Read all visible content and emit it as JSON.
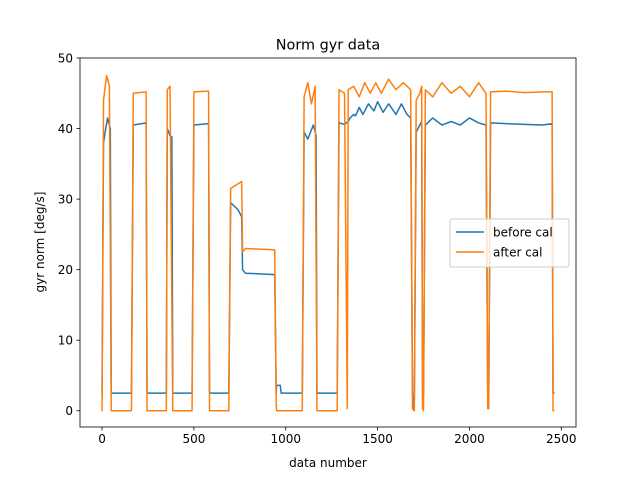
{
  "chart_data": {
    "type": "line",
    "title": "Norm gyr data",
    "xlabel": "data number",
    "ylabel": "gyr norm [deg/s]",
    "xlim": [
      -120,
      2580
    ],
    "ylim": [
      -2.3,
      50
    ],
    "xticks": [
      0,
      500,
      1000,
      1500,
      2000,
      2500
    ],
    "yticks": [
      0,
      10,
      20,
      30,
      40,
      50
    ],
    "grid": false,
    "legend_position": "center-right",
    "series": [
      {
        "name": "before cal",
        "color": "#1f77b4",
        "points": [
          [
            0,
            2.5
          ],
          [
            8,
            38
          ],
          [
            20,
            40
          ],
          [
            30,
            41.5
          ],
          [
            45,
            40
          ],
          [
            50,
            2.5
          ],
          [
            160,
            2.5
          ],
          [
            170,
            40.5
          ],
          [
            240,
            40.8
          ],
          [
            245,
            2.5
          ],
          [
            350,
            2.5
          ],
          [
            355,
            40
          ],
          [
            370,
            39
          ],
          [
            380,
            38.8
          ],
          [
            385,
            2.5
          ],
          [
            490,
            2.5
          ],
          [
            500,
            40.5
          ],
          [
            580,
            40.7
          ],
          [
            585,
            2.5
          ],
          [
            690,
            2.5
          ],
          [
            700,
            29.5
          ],
          [
            740,
            28.5
          ],
          [
            760,
            27.5
          ],
          [
            765,
            20
          ],
          [
            780,
            19.5
          ],
          [
            940,
            19.3
          ],
          [
            948,
            2.5
          ],
          [
            950,
            3.6
          ],
          [
            970,
            3.6
          ],
          [
            975,
            2.5
          ],
          [
            1090,
            2.5
          ],
          [
            1100,
            39.5
          ],
          [
            1120,
            38.5
          ],
          [
            1150,
            40.5
          ],
          [
            1165,
            39
          ],
          [
            1170,
            2.5
          ],
          [
            1280,
            2.5
          ],
          [
            1290,
            40.8
          ],
          [
            1320,
            40.6
          ],
          [
            1340,
            41
          ],
          [
            1350,
            41.5
          ],
          [
            1370,
            42
          ],
          [
            1380,
            41.8
          ],
          [
            1400,
            43
          ],
          [
            1420,
            42
          ],
          [
            1450,
            43.5
          ],
          [
            1480,
            42.5
          ],
          [
            1500,
            43.8
          ],
          [
            1530,
            42.3
          ],
          [
            1560,
            43.5
          ],
          [
            1600,
            42
          ],
          [
            1630,
            43.5
          ],
          [
            1660,
            42
          ],
          [
            1680,
            41.5
          ],
          [
            1690,
            2.5
          ],
          [
            1695,
            0.3
          ],
          [
            1700,
            1.5
          ],
          [
            1710,
            39.5
          ],
          [
            1740,
            41
          ],
          [
            1745,
            0.3
          ],
          [
            1750,
            2.5
          ],
          [
            1760,
            40.5
          ],
          [
            1800,
            41.5
          ],
          [
            1850,
            40.5
          ],
          [
            1900,
            41
          ],
          [
            1950,
            40.5
          ],
          [
            2000,
            41.5
          ],
          [
            2050,
            40.8
          ],
          [
            2090,
            40.5
          ],
          [
            2100,
            0.3
          ],
          [
            2105,
            2.5
          ],
          [
            2115,
            40.8
          ],
          [
            2200,
            40.7
          ],
          [
            2300,
            40.6
          ],
          [
            2400,
            40.5
          ],
          [
            2450,
            40.7
          ],
          [
            2455,
            2.5
          ],
          [
            2460,
            2.5
          ]
        ]
      },
      {
        "name": "after cal",
        "color": "#ff7f0e",
        "points": [
          [
            0,
            0
          ],
          [
            8,
            44
          ],
          [
            15,
            45.5
          ],
          [
            25,
            47.5
          ],
          [
            40,
            46
          ],
          [
            50,
            0
          ],
          [
            160,
            0
          ],
          [
            170,
            45
          ],
          [
            240,
            45.2
          ],
          [
            245,
            0
          ],
          [
            350,
            0
          ],
          [
            355,
            45.5
          ],
          [
            370,
            46
          ],
          [
            385,
            0
          ],
          [
            490,
            0
          ],
          [
            500,
            45.2
          ],
          [
            580,
            45.3
          ],
          [
            585,
            0
          ],
          [
            690,
            0
          ],
          [
            700,
            31.5
          ],
          [
            730,
            32
          ],
          [
            760,
            32.5
          ],
          [
            765,
            22.5
          ],
          [
            780,
            23
          ],
          [
            940,
            22.8
          ],
          [
            948,
            1
          ],
          [
            950,
            0
          ],
          [
            1090,
            0
          ],
          [
            1100,
            44.5
          ],
          [
            1120,
            46.5
          ],
          [
            1140,
            43.5
          ],
          [
            1160,
            46
          ],
          [
            1170,
            0
          ],
          [
            1280,
            0
          ],
          [
            1290,
            45.5
          ],
          [
            1320,
            45
          ],
          [
            1335,
            0.3
          ],
          [
            1340,
            45.5
          ],
          [
            1370,
            46
          ],
          [
            1400,
            44.5
          ],
          [
            1430,
            46.5
          ],
          [
            1460,
            45
          ],
          [
            1490,
            46.5
          ],
          [
            1520,
            45
          ],
          [
            1560,
            47
          ],
          [
            1600,
            45.5
          ],
          [
            1640,
            46.5
          ],
          [
            1680,
            45.5
          ],
          [
            1690,
            0.3
          ],
          [
            1700,
            0
          ],
          [
            1710,
            44
          ],
          [
            1730,
            45
          ],
          [
            1740,
            46
          ],
          [
            1745,
            0.3
          ],
          [
            1750,
            0
          ],
          [
            1760,
            45.5
          ],
          [
            1800,
            44.5
          ],
          [
            1850,
            46.5
          ],
          [
            1900,
            45
          ],
          [
            1950,
            46
          ],
          [
            2000,
            44.5
          ],
          [
            2050,
            46.5
          ],
          [
            2090,
            45
          ],
          [
            2100,
            0.3
          ],
          [
            2105,
            0.3
          ],
          [
            2115,
            45.2
          ],
          [
            2200,
            45.3
          ],
          [
            2300,
            45.1
          ],
          [
            2400,
            45.2
          ],
          [
            2450,
            45.2
          ],
          [
            2455,
            0
          ],
          [
            2460,
            0
          ]
        ]
      }
    ]
  }
}
